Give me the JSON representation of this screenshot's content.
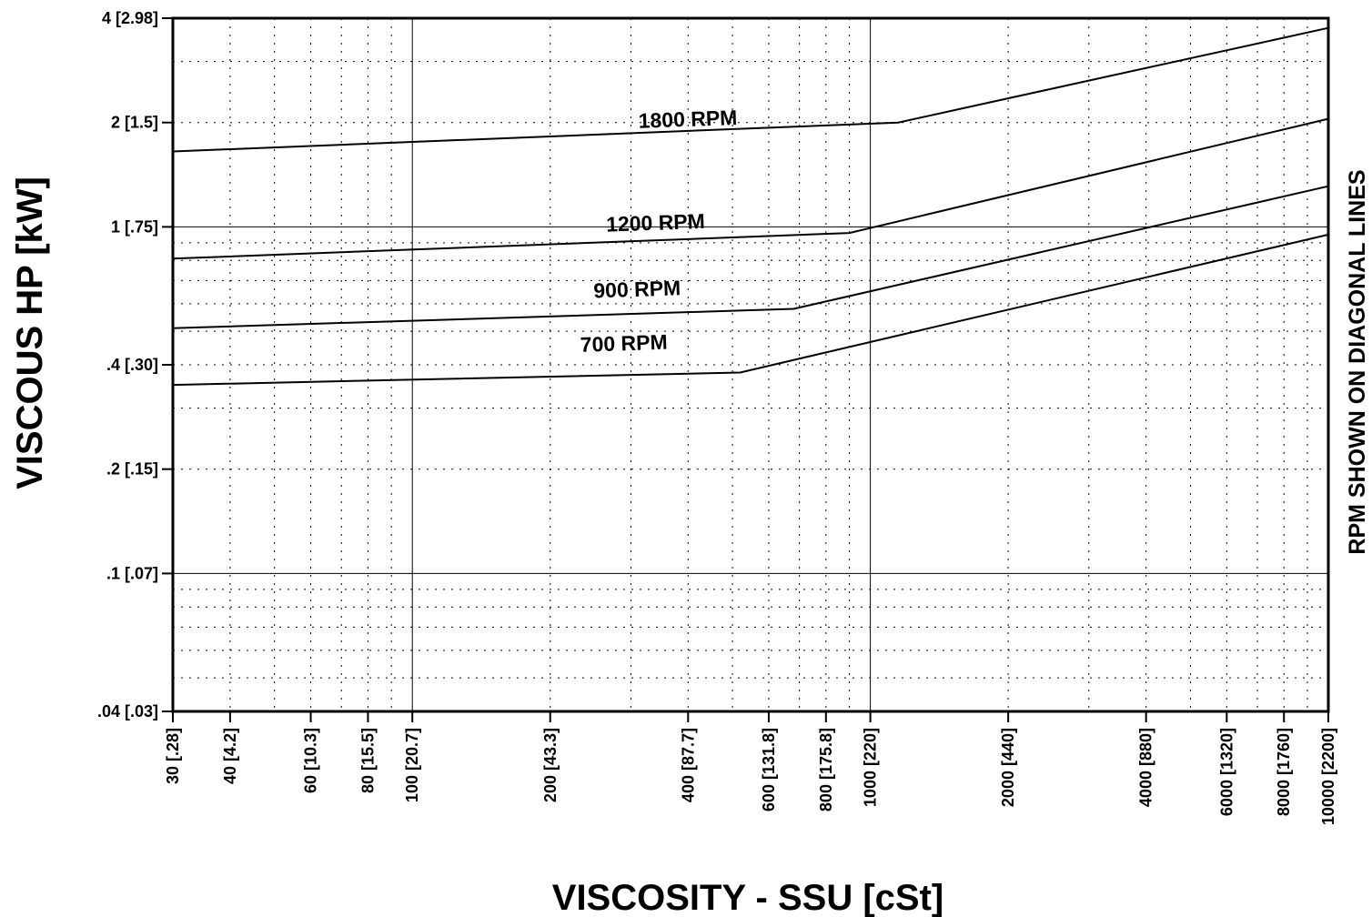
{
  "chart_data": {
    "type": "line",
    "xlabel": "VISCOSITY - SSU [cSt]",
    "ylabel": "VISCOUS HP [kW]",
    "right_label": "RPM SHOWN ON DIAGONAL LINES",
    "x_scale": "log",
    "y_scale": "log",
    "xlim": [
      30,
      10000
    ],
    "ylim": [
      0.04,
      4
    ],
    "grid": true,
    "x_ticks": [
      {
        "value": 30,
        "label": "30 [.28]"
      },
      {
        "value": 40,
        "label": "40 [4.2]"
      },
      {
        "value": 60,
        "label": "60 [10.3]"
      },
      {
        "value": 80,
        "label": "80 [15.5]"
      },
      {
        "value": 100,
        "label": "100 [20.7]"
      },
      {
        "value": 200,
        "label": "200 [43.3]"
      },
      {
        "value": 400,
        "label": "400 [87.7]"
      },
      {
        "value": 600,
        "label": "600 [131.8]"
      },
      {
        "value": 800,
        "label": "800 [175.8]"
      },
      {
        "value": 1000,
        "label": "1000 [220]"
      },
      {
        "value": 2000,
        "label": "2000 [440]"
      },
      {
        "value": 4000,
        "label": "4000 [880]"
      },
      {
        "value": 6000,
        "label": "6000 [1320]"
      },
      {
        "value": 8000,
        "label": "8000 [1760]"
      },
      {
        "value": 10000,
        "label": "10000 [2200]"
      }
    ],
    "y_ticks": [
      {
        "value": 4,
        "label": "4 [2.98]"
      },
      {
        "value": 2,
        "label": "2 [1.5]"
      },
      {
        "value": 1,
        "label": "1 [.75]"
      },
      {
        "value": 0.4,
        "label": ".4 [.30]"
      },
      {
        "value": 0.2,
        "label": ".2 [.15]"
      },
      {
        "value": 0.1,
        "label": ".1 [.07]"
      },
      {
        "value": 0.04,
        "label": ".04 [.03]"
      }
    ],
    "series": [
      {
        "name": "1800 RPM",
        "label_at": [
          400,
          1.95
        ],
        "points": [
          [
            30,
            1.65
          ],
          [
            1150,
            2.0
          ],
          [
            10000,
            3.75
          ]
        ]
      },
      {
        "name": "1200 RPM",
        "label_at": [
          340,
          0.98
        ],
        "points": [
          [
            30,
            0.81
          ],
          [
            900,
            0.96
          ],
          [
            10000,
            2.05
          ]
        ]
      },
      {
        "name": "900 RPM",
        "label_at": [
          310,
          0.63
        ],
        "points": [
          [
            30,
            0.51
          ],
          [
            680,
            0.58
          ],
          [
            10000,
            1.31
          ]
        ]
      },
      {
        "name": "700 RPM",
        "label_at": [
          290,
          0.44
        ],
        "points": [
          [
            30,
            0.35
          ],
          [
            520,
            0.38
          ],
          [
            10000,
            0.95
          ]
        ]
      }
    ]
  }
}
